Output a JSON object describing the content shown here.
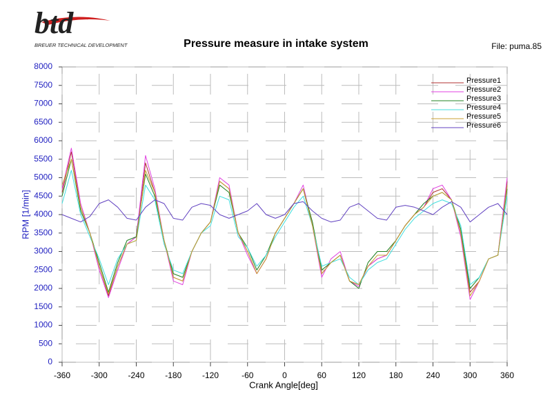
{
  "chart_data": {
    "type": "line",
    "title": "Pressure measure in intake system",
    "file_label": "File: puma.85",
    "logo": "btd",
    "logo_subtitle": "BREUER TECHNICAL DEVELOPMENT",
    "x_label": "Crank Angle[deg]",
    "y_label": "RPM [1/min]",
    "xlim": [
      -360,
      360
    ],
    "ylim": [
      0,
      8000
    ],
    "xticks": [
      -360,
      -300,
      -240,
      -180,
      -120,
      -60,
      0,
      60,
      120,
      180,
      240,
      300,
      360
    ],
    "yticks": [
      0,
      500,
      1000,
      1500,
      2000,
      2500,
      3000,
      3500,
      4000,
      4500,
      5000,
      5500,
      6000,
      6500,
      7000,
      7500,
      8000
    ],
    "grid": true,
    "legend": "upper right",
    "x": [
      -360,
      -345,
      -330,
      -315,
      -300,
      -285,
      -270,
      -255,
      -240,
      -225,
      -210,
      -195,
      -180,
      -165,
      -150,
      -135,
      -120,
      -105,
      -90,
      -75,
      -60,
      -45,
      -30,
      -15,
      0,
      15,
      30,
      45,
      60,
      75,
      90,
      105,
      120,
      135,
      150,
      165,
      180,
      195,
      210,
      225,
      240,
      255,
      270,
      285,
      300,
      315,
      330,
      345,
      360
    ],
    "series": [
      {
        "name": "Pressure1",
        "color": "#b03030",
        "values": [
          4600,
          5700,
          4200,
          3500,
          2600,
          1800,
          2600,
          3200,
          3400,
          5400,
          4600,
          3300,
          2300,
          2200,
          3000,
          3500,
          3800,
          4900,
          4700,
          3500,
          3000,
          2400,
          2800,
          3500,
          3900,
          4300,
          4700,
          3700,
          2400,
          2700,
          2900,
          2200,
          2100,
          2600,
          2800,
          2900,
          3300,
          3700,
          4000,
          4200,
          4600,
          4700,
          4400,
          3500,
          1900,
          2200,
          2800,
          2900,
          4900
        ]
      },
      {
        "name": "Pressure2",
        "color": "#e040e0",
        "values": [
          4700,
          5800,
          4300,
          3500,
          2500,
          1750,
          2500,
          3200,
          3400,
          5600,
          4700,
          3300,
          2200,
          2100,
          3000,
          3500,
          3800,
          5000,
          4800,
          3500,
          2900,
          2400,
          2800,
          3500,
          3900,
          4300,
          4800,
          3700,
          2300,
          2800,
          3000,
          2200,
          2050,
          2600,
          2800,
          2900,
          3300,
          3700,
          4000,
          4200,
          4700,
          4800,
          4400,
          3400,
          1700,
          2200,
          2800,
          2900,
          5000
        ]
      },
      {
        "name": "Pressure3",
        "color": "#208020",
        "values": [
          4500,
          5500,
          4100,
          3500,
          2700,
          1900,
          2700,
          3300,
          3400,
          5100,
          4500,
          3300,
          2400,
          2300,
          3000,
          3500,
          3800,
          4800,
          4600,
          3500,
          3100,
          2500,
          2900,
          3500,
          3900,
          4300,
          4700,
          3800,
          2500,
          2700,
          2900,
          2200,
          2000,
          2700,
          3000,
          3000,
          3300,
          3700,
          4000,
          4300,
          4500,
          4600,
          4400,
          3600,
          2000,
          2300,
          2800,
          2900,
          4700
        ]
      },
      {
        "name": "Pressure4",
        "color": "#40dede",
        "values": [
          4300,
          5200,
          4000,
          3400,
          2800,
          2100,
          2800,
          3200,
          3300,
          4800,
          4400,
          3200,
          2500,
          2400,
          3000,
          3500,
          3700,
          4500,
          4400,
          3400,
          3100,
          2600,
          2900,
          3400,
          3800,
          4200,
          4500,
          3700,
          2600,
          2700,
          2800,
          2300,
          2100,
          2500,
          2700,
          2800,
          3200,
          3600,
          3900,
          4100,
          4300,
          4400,
          4300,
          3700,
          2100,
          2300,
          2800,
          2900,
          4500
        ]
      },
      {
        "name": "Pressure5",
        "color": "#c8a030",
        "values": [
          4800,
          5500,
          4200,
          3500,
          2600,
          1850,
          2600,
          3200,
          3300,
          5200,
          4600,
          3300,
          2300,
          2200,
          3000,
          3500,
          3800,
          4900,
          4700,
          3500,
          3000,
          2400,
          2800,
          3500,
          3900,
          4300,
          4700,
          3700,
          2400,
          2700,
          2900,
          2200,
          2100,
          2600,
          2900,
          2900,
          3300,
          3700,
          4000,
          4200,
          4500,
          4600,
          4400,
          3500,
          1800,
          2200,
          2800,
          2900,
          4800
        ]
      },
      {
        "name": "Pressure6",
        "color": "#6040c0",
        "values": [
          4000,
          3900,
          3800,
          3950,
          4300,
          4400,
          4200,
          3900,
          3850,
          4200,
          4400,
          4300,
          3900,
          3850,
          4200,
          4300,
          4250,
          4000,
          3900,
          4000,
          4100,
          4300,
          4000,
          3900,
          4000,
          4300,
          4350,
          4100,
          3900,
          3800,
          3850,
          4200,
          4300,
          4100,
          3900,
          3850,
          4200,
          4250,
          4200,
          4100,
          4000,
          4200,
          4350,
          4200,
          3800,
          4000,
          4200,
          4300,
          4000
        ]
      }
    ]
  }
}
